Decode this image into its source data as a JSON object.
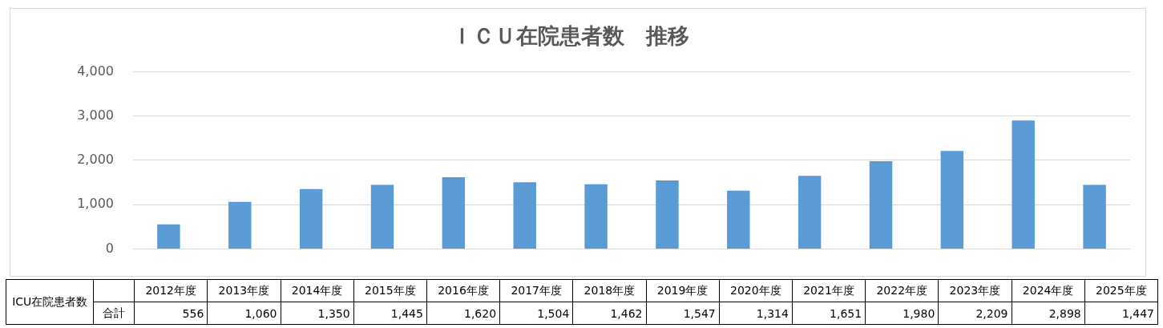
{
  "chart_data": {
    "type": "bar",
    "title": "ＩＣＵ在院患者数　推移",
    "categories": [
      "2012年度",
      "2013年度",
      "2014年度",
      "2015年度",
      "2016年度",
      "2017年度",
      "2018年度",
      "2019年度",
      "2020年度",
      "2021年度",
      "2022年度",
      "2023年度",
      "2024年度",
      "2025年度"
    ],
    "series": [
      {
        "name": "合計",
        "color": "#5b9bd5",
        "values": [
          556,
          1060,
          1350,
          1445,
          1620,
          1504,
          1462,
          1547,
          1314,
          1651,
          1980,
          2209,
          2898,
          1447
        ],
        "value_labels": [
          "556",
          "1,060",
          "1,350",
          "1,445",
          "1,620",
          "1,504",
          "1,462",
          "1,547",
          "1,314",
          "1,651",
          "1,980",
          "2,209",
          "2,898",
          "1,447"
        ]
      }
    ],
    "ylim": [
      0,
      4000
    ],
    "yticks": [
      {
        "value": 0,
        "label": "0"
      },
      {
        "value": 1000,
        "label": "1,000"
      },
      {
        "value": 2000,
        "label": "2,000"
      },
      {
        "value": 3000,
        "label": "3,000"
      },
      {
        "value": 4000,
        "label": "4,000"
      }
    ],
    "grid": "y",
    "legend": false,
    "annotations": [
      "ICU在院患者数"
    ]
  }
}
